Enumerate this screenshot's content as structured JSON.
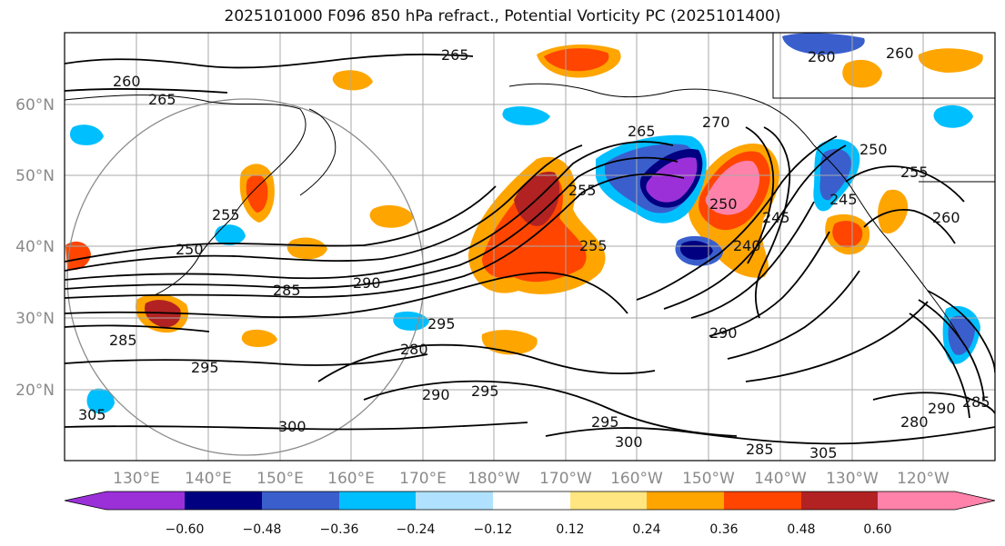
{
  "title": "2025101000 F096 850 hPa refract., Potential Vorticity PC (2025101400)",
  "lat_labels": [
    "60°N",
    "50°N",
    "40°N",
    "30°N",
    "20°N"
  ],
  "lon_labels": [
    "130°E",
    "140°E",
    "150°E",
    "160°E",
    "170°E",
    "180°W",
    "170°W",
    "160°W",
    "150°W",
    "140°W",
    "130°W",
    "120°W"
  ],
  "colorbar": {
    "ticks": [
      "−0.60",
      "−0.48",
      "−0.36",
      "−0.24",
      "−0.12",
      "0.12",
      "0.24",
      "0.36",
      "0.48",
      "0.60"
    ],
    "colors": [
      "#9b30d9",
      "#000080",
      "#3a5fcd",
      "#00bfff",
      "#b0e2ff",
      "#ffffff",
      "#ffe680",
      "#ffa500",
      "#ff4500",
      "#b22222",
      "#ff82ab"
    ]
  },
  "contour_labels": [
    "260",
    "265",
    "265",
    "255",
    "250",
    "255",
    "285",
    "295",
    "290",
    "295",
    "300",
    "305",
    "285",
    "280",
    "295",
    "290",
    "255",
    "270",
    "265",
    "250",
    "245",
    "240",
    "260",
    "250",
    "255",
    "245",
    "260",
    "260",
    "290",
    "285",
    "300",
    "295",
    "305",
    "280",
    "290",
    "285"
  ]
}
